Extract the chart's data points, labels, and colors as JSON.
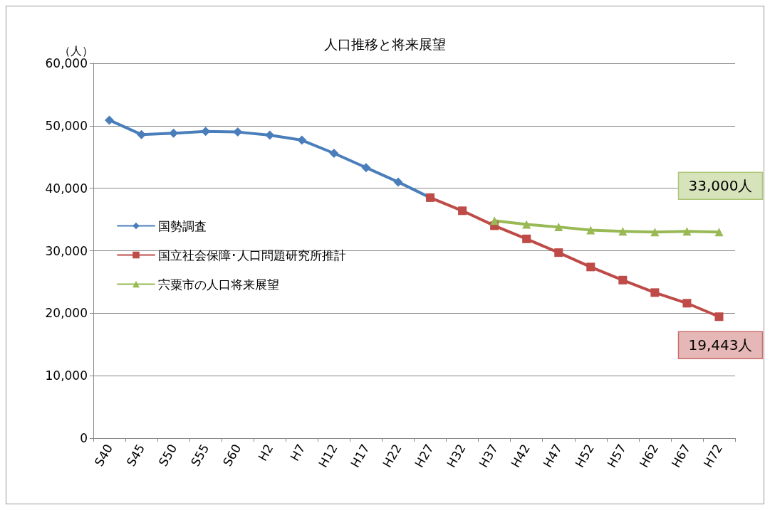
{
  "chart_data": {
    "type": "line",
    "title": "人口推移と将来展望",
    "ylabel": "（人）",
    "categories": [
      "S40",
      "S45",
      "S50",
      "S55",
      "S60",
      "H2",
      "H7",
      "H12",
      "H17",
      "H22",
      "H27",
      "H32",
      "H37",
      "H42",
      "H47",
      "H52",
      "H57",
      "H62",
      "H67",
      "H72"
    ],
    "series": [
      {
        "name": "国勢調査",
        "color": "#4a7ebb",
        "marker": "diamond",
        "values": [
          50900,
          48600,
          48800,
          49100,
          49000,
          48500,
          47700,
          45600,
          43300,
          41000,
          38500,
          null,
          null,
          null,
          null,
          null,
          null,
          null,
          null,
          null
        ]
      },
      {
        "name": "国立社会保障･人口問題研究所推計",
        "color": "#be4b48",
        "marker": "square",
        "values": [
          null,
          null,
          null,
          null,
          null,
          null,
          null,
          null,
          null,
          null,
          38500,
          36400,
          34000,
          31900,
          29700,
          27400,
          25300,
          23300,
          21600,
          19443
        ]
      },
      {
        "name": "宍粟市の人口将来展望",
        "color": "#98b954",
        "marker": "triangle",
        "values": [
          null,
          null,
          null,
          null,
          null,
          null,
          null,
          null,
          null,
          null,
          null,
          null,
          34800,
          34200,
          33800,
          33300,
          33100,
          33000,
          33100,
          33000
        ]
      }
    ],
    "ylim": [
      0,
      60000
    ],
    "yticks": [
      0,
      {
        "value": 10000,
        "label": "10,000"
      },
      {
        "value": 20000,
        "label": "20,000"
      },
      {
        "value": 30000,
        "label": "30,000"
      },
      {
        "value": 40000,
        "label": "40,000"
      },
      {
        "value": 50000,
        "label": "50,000"
      },
      {
        "value": 60000,
        "label": "60,000"
      }
    ],
    "grid": "y",
    "legend": "left",
    "annotations": [
      {
        "text": "33,000人",
        "x": "H72",
        "y": 33000
      },
      {
        "text": "19,443人",
        "x": "H72",
        "y": 19443
      }
    ]
  }
}
